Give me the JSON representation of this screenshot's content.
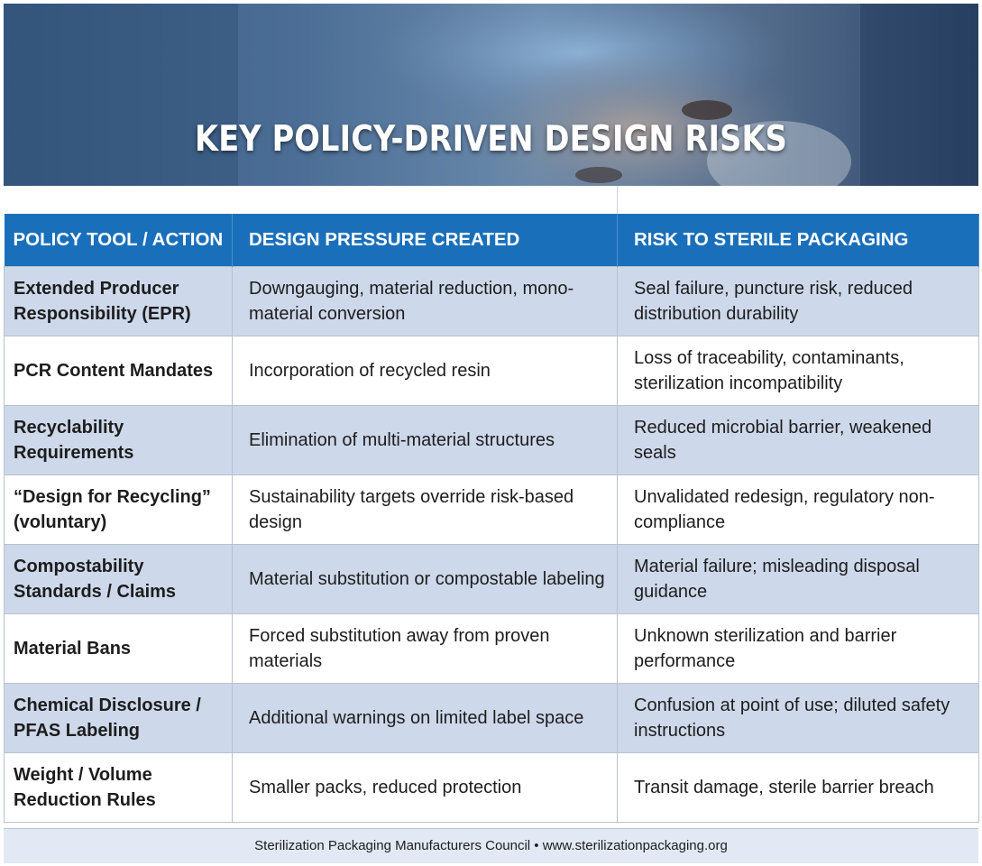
{
  "title": "KEY POLICY-DRIVEN DESIGN RISKS",
  "colors": {
    "header_blue": "#1a6fba",
    "row_shade": "#cdd8ea",
    "footer_bg": "#e2e9f4"
  },
  "banner_image": "healthcare-worker-surgical-cap-photo",
  "table": {
    "headers": [
      "POLICY TOOL / ACTION",
      "DESIGN PRESSURE CREATED",
      "RISK TO STERILE PACKAGING"
    ],
    "rows": [
      {
        "policy": "Extended Producer Responsibility (EPR)",
        "pressure": "Downgauging, material reduction, mono-material conversion",
        "risk": "Seal failure, puncture risk, reduced distribution durability"
      },
      {
        "policy": "PCR Content Mandates",
        "pressure": "Incorporation of recycled resin",
        "risk": "Loss of traceability, contaminants, sterilization incompatibility"
      },
      {
        "policy": "Recyclability Requirements",
        "pressure": "Elimination of multi-material structures",
        "risk": "Reduced microbial barrier, weakened seals"
      },
      {
        "policy": "“Design for Recycling” (voluntary)",
        "pressure": "Sustainability targets override risk-based design",
        "risk": "Unvalidated redesign, regulatory non-compliance"
      },
      {
        "policy": "Compostability Standards / Claims",
        "pressure": "Material substitution or compostable labeling",
        "risk": "Material failure; misleading disposal guidance"
      },
      {
        "policy": "Material Bans",
        "pressure": "Forced substitution away from proven materials",
        "risk": "Unknown sterilization and barrier performance"
      },
      {
        "policy": "Chemical Disclosure / PFAS Labeling",
        "pressure": "Additional warnings on limited label space",
        "risk": "Confusion at point of use; diluted safety instructions"
      },
      {
        "policy": "Weight / Volume Reduction Rules",
        "pressure": "Smaller packs, reduced protection",
        "risk": "Transit damage, sterile barrier breach"
      }
    ]
  },
  "footer": "Sterilization Packaging Manufacturers Council • www.sterilizationpackaging.org"
}
